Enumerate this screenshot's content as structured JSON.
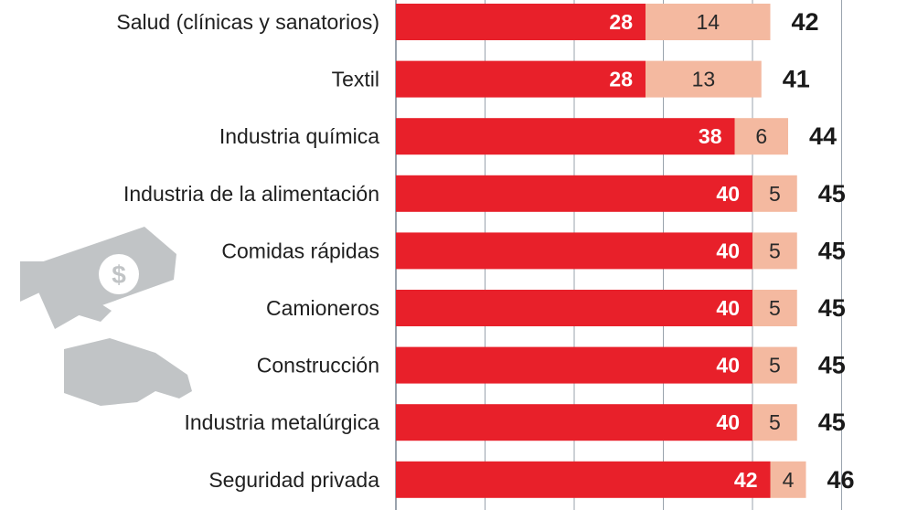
{
  "chart_data": {
    "type": "bar",
    "orientation": "horizontal",
    "stacked": true,
    "categories": [
      "Salud (clínicas y sanatorios)",
      "Textil",
      "Industria química",
      "Industria de la alimentación",
      "Comidas rápidas",
      "Camioneros",
      "Construcción",
      "Industria metalúrgica",
      "Seguridad privada"
    ],
    "series": [
      {
        "values": [
          28,
          28,
          38,
          40,
          40,
          40,
          40,
          40,
          42
        ]
      },
      {
        "values": [
          14,
          13,
          6,
          5,
          5,
          5,
          5,
          5,
          4
        ]
      }
    ],
    "totals": [
      42,
      41,
      44,
      45,
      45,
      45,
      45,
      45,
      46
    ],
    "xlim": [
      0,
      50
    ],
    "grid": true
  },
  "colors": {
    "series_a": "#e8202a",
    "series_b": "#f4b9a0",
    "gridline": "#9aa3ad",
    "icon": "#bfc2c4"
  },
  "icons": [
    "money-hand-icon"
  ]
}
